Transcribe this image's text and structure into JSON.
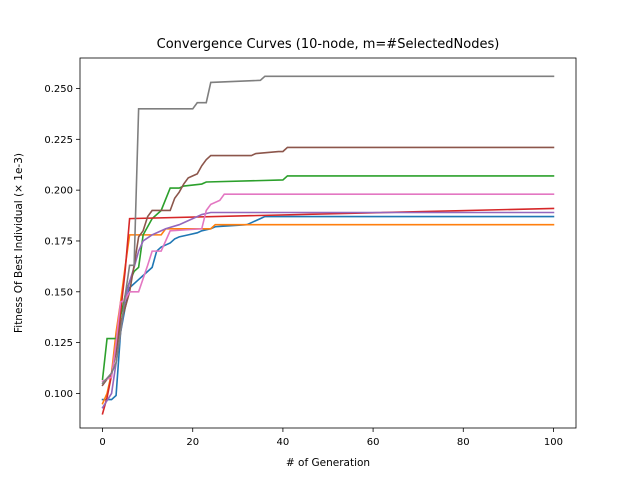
{
  "chart_data": {
    "type": "line",
    "title": "Convergence Curves (10-node, m=#SelectedNodes)",
    "xlabel": "# of Generation",
    "ylabel": "Fitness Of Best Individual (× 1e-3)",
    "xlim": [
      -5,
      105
    ],
    "ylim": [
      0.083,
      0.265
    ],
    "xticks": [
      0,
      20,
      40,
      60,
      80,
      100
    ],
    "xtick_labels": [
      "0",
      "20",
      "40",
      "60",
      "80",
      "100"
    ],
    "yticks": [
      0.1,
      0.125,
      0.15,
      0.175,
      0.2,
      0.225,
      0.25
    ],
    "ytick_labels": [
      "0.100",
      "0.125",
      "0.150",
      "0.175",
      "0.200",
      "0.225",
      "0.250"
    ],
    "grid": false,
    "legend": "none",
    "series": [
      {
        "color": "#1f77b4",
        "x": [
          0,
          2,
          3,
          4,
          5,
          6,
          8,
          9,
          11,
          12,
          13,
          15,
          16,
          17,
          19,
          21,
          22,
          24,
          25,
          32,
          33,
          35,
          36,
          100
        ],
        "y": [
          0.097,
          0.097,
          0.099,
          0.13,
          0.142,
          0.152,
          0.156,
          0.158,
          0.162,
          0.17,
          0.172,
          0.174,
          0.176,
          0.177,
          0.178,
          0.179,
          0.18,
          0.181,
          0.182,
          0.183,
          0.184,
          0.186,
          0.187,
          0.187
        ]
      },
      {
        "color": "#ff7f0e",
        "x": [
          0,
          1,
          2,
          3,
          4,
          5,
          6,
          13,
          14,
          24,
          25,
          100
        ],
        "y": [
          0.095,
          0.1,
          0.11,
          0.13,
          0.145,
          0.162,
          0.178,
          0.178,
          0.181,
          0.181,
          0.183,
          0.183
        ]
      },
      {
        "color": "#2ca02c",
        "x": [
          0,
          1,
          3,
          4,
          5,
          6,
          7,
          8,
          9,
          11,
          13,
          15,
          17,
          18,
          22,
          23,
          40,
          41,
          100
        ],
        "y": [
          0.107,
          0.127,
          0.127,
          0.138,
          0.148,
          0.155,
          0.16,
          0.162,
          0.178,
          0.186,
          0.19,
          0.201,
          0.201,
          0.202,
          0.203,
          0.204,
          0.205,
          0.207,
          0.207
        ]
      },
      {
        "color": "#d62728",
        "x": [
          0,
          1,
          2,
          3,
          4,
          5,
          6,
          100
        ],
        "y": [
          0.09,
          0.098,
          0.109,
          0.122,
          0.14,
          0.16,
          0.186,
          0.191
        ]
      },
      {
        "color": "#9467bd",
        "x": [
          0,
          2,
          3,
          4,
          5,
          6,
          7,
          8,
          9,
          11,
          14,
          17,
          20,
          22,
          24,
          100
        ],
        "y": [
          0.093,
          0.1,
          0.115,
          0.13,
          0.146,
          0.155,
          0.162,
          0.17,
          0.175,
          0.178,
          0.181,
          0.183,
          0.186,
          0.188,
          0.189,
          0.189
        ]
      },
      {
        "color": "#8c564b",
        "x": [
          0,
          2,
          3,
          4,
          5,
          6,
          7,
          8,
          9,
          10,
          11,
          15,
          16,
          17,
          18,
          19,
          20,
          21,
          22,
          23,
          24,
          33,
          34,
          39,
          40,
          41,
          100
        ],
        "y": [
          0.104,
          0.11,
          0.12,
          0.135,
          0.142,
          0.15,
          0.163,
          0.177,
          0.18,
          0.187,
          0.19,
          0.19,
          0.196,
          0.199,
          0.203,
          0.206,
          0.207,
          0.208,
          0.212,
          0.215,
          0.217,
          0.217,
          0.218,
          0.219,
          0.219,
          0.221,
          0.221
        ]
      },
      {
        "color": "#e377c2",
        "x": [
          0,
          2,
          3,
          4,
          5,
          6,
          7,
          8,
          10,
          11,
          13,
          15,
          22,
          23,
          24,
          26,
          27,
          100
        ],
        "y": [
          0.106,
          0.108,
          0.125,
          0.145,
          0.146,
          0.15,
          0.15,
          0.15,
          0.163,
          0.17,
          0.17,
          0.18,
          0.181,
          0.19,
          0.193,
          0.195,
          0.198,
          0.198
        ]
      },
      {
        "color": "#7f7f7f",
        "x": [
          0,
          2,
          3,
          4,
          5,
          6,
          7,
          8,
          20,
          21,
          23,
          24,
          35,
          36,
          100
        ],
        "y": [
          0.105,
          0.11,
          0.115,
          0.13,
          0.148,
          0.163,
          0.163,
          0.24,
          0.24,
          0.243,
          0.243,
          0.253,
          0.254,
          0.256,
          0.256
        ]
      }
    ]
  }
}
